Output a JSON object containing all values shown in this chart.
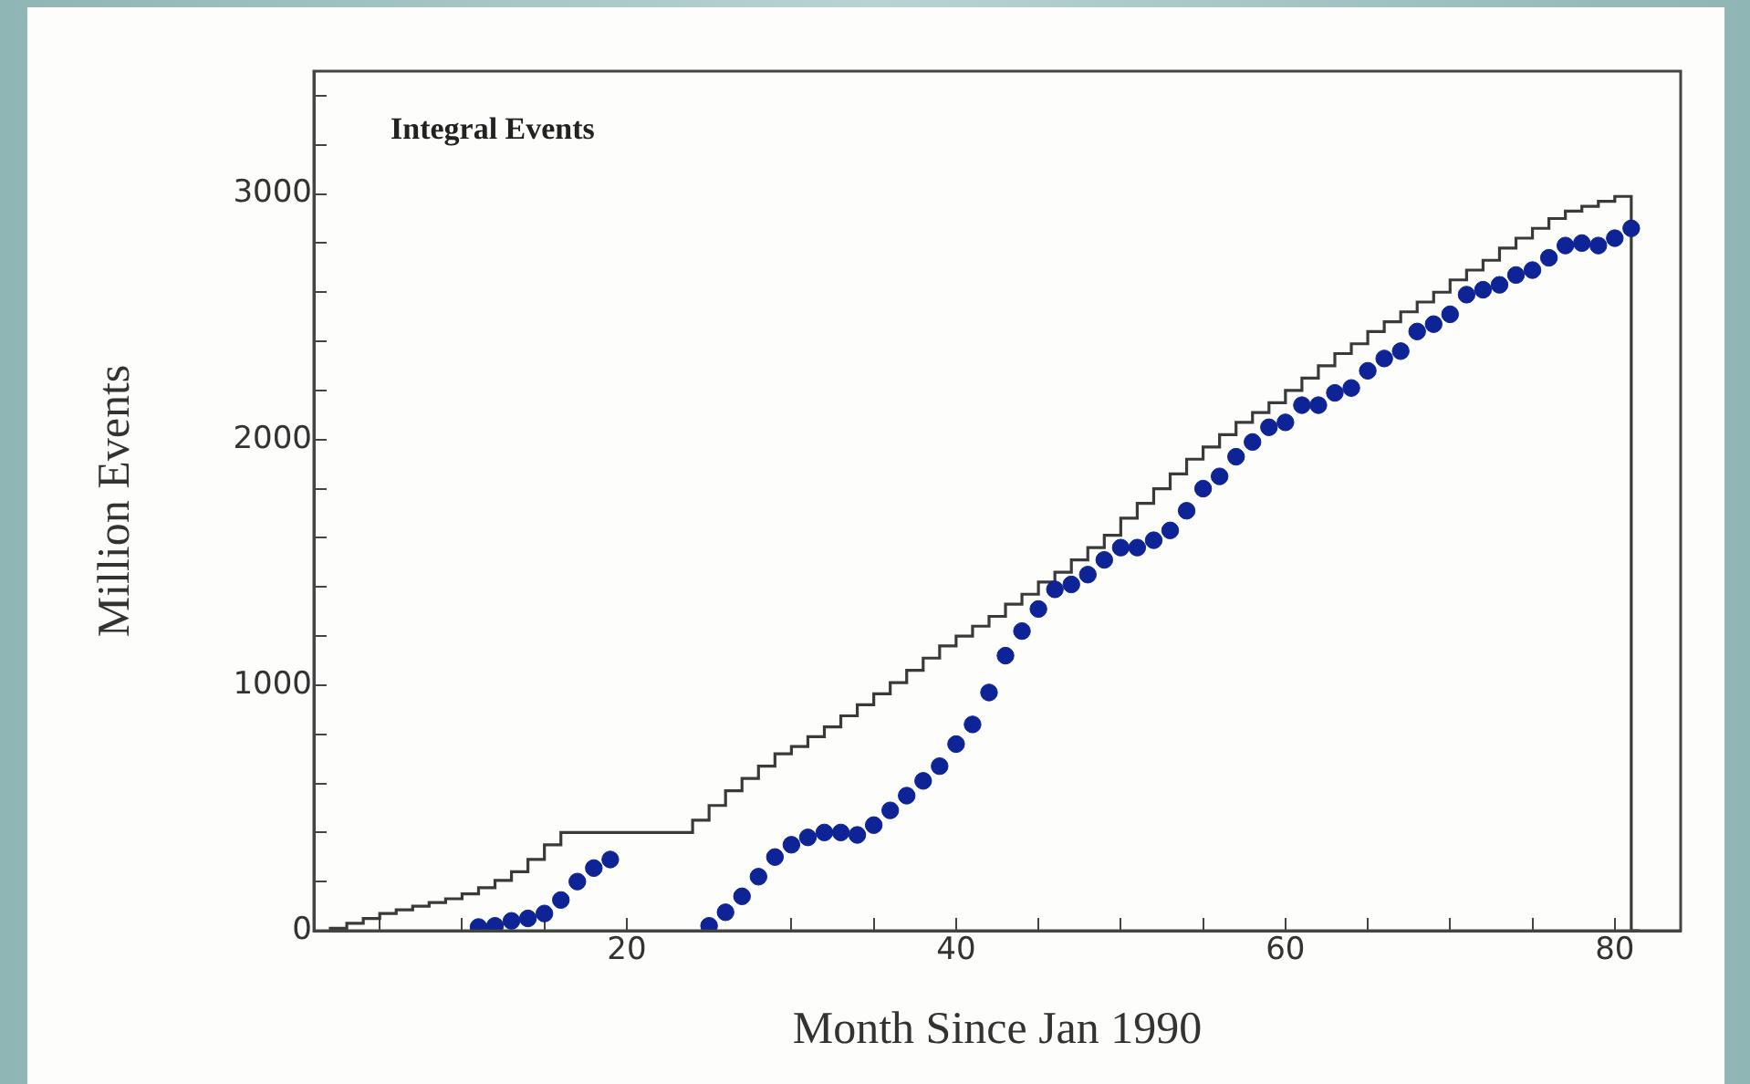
{
  "chart_data": {
    "type": "scatter",
    "xlabel": "Month Since Jan 1990",
    "ylabel": "Million Events",
    "annotations": [
      "Integral Events"
    ],
    "xlim": [
      1,
      84
    ],
    "ylim": [
      0,
      3500
    ],
    "xticks": [
      {
        "value": 5,
        "label": null
      },
      {
        "value": 10,
        "label": null
      },
      {
        "value": 15,
        "label": null
      },
      20,
      {
        "value": 25,
        "label": null
      },
      {
        "value": 30,
        "label": null
      },
      {
        "value": 35,
        "label": null
      },
      40,
      {
        "value": 45,
        "label": null
      },
      {
        "value": 50,
        "label": null
      },
      {
        "value": 55,
        "label": null
      },
      60,
      {
        "value": 65,
        "label": null
      },
      {
        "value": 70,
        "label": null
      },
      {
        "value": 75,
        "label": null
      },
      80
    ],
    "yticks": [
      0,
      {
        "value": 200,
        "label": null
      },
      {
        "value": 400,
        "label": null
      },
      {
        "value": 600,
        "label": null
      },
      {
        "value": 800,
        "label": null
      },
      1000,
      {
        "value": 1200,
        "label": null
      },
      {
        "value": 1400,
        "label": null
      },
      {
        "value": 1600,
        "label": null
      },
      {
        "value": 1800,
        "label": null
      },
      2000,
      {
        "value": 2200,
        "label": null
      },
      {
        "value": 2400,
        "label": null
      },
      {
        "value": 2600,
        "label": null
      },
      {
        "value": 2800,
        "label": null
      },
      3000,
      {
        "value": 3200,
        "label": null
      },
      {
        "value": 3400,
        "label": null
      }
    ],
    "grid": false,
    "series": [
      {
        "type": "step",
        "color": "#3a3a3a",
        "x": [
          2,
          3,
          4,
          5,
          6,
          7,
          8,
          9,
          10,
          11,
          12,
          13,
          14,
          15,
          16,
          17,
          18,
          19,
          20,
          21,
          22,
          23,
          24,
          25,
          26,
          27,
          28,
          29,
          30,
          31,
          32,
          33,
          34,
          35,
          36,
          37,
          38,
          39,
          40,
          41,
          42,
          43,
          44,
          45,
          46,
          47,
          48,
          49,
          50,
          51,
          52,
          53,
          54,
          55,
          56,
          57,
          58,
          59,
          60,
          61,
          62,
          63,
          64,
          65,
          66,
          67,
          68,
          69,
          70,
          71,
          72,
          73,
          74,
          75,
          76,
          77,
          78,
          79,
          80,
          81,
          81.5
        ],
        "values": [
          0,
          10,
          30,
          50,
          70,
          85,
          100,
          115,
          130,
          150,
          175,
          205,
          240,
          290,
          350,
          400,
          400,
          400,
          400,
          400,
          400,
          400,
          400,
          450,
          510,
          570,
          620,
          670,
          720,
          750,
          790,
          830,
          875,
          920,
          965,
          1010,
          1060,
          1110,
          1160,
          1200,
          1240,
          1280,
          1330,
          1370,
          1420,
          1460,
          1510,
          1560,
          1610,
          1680,
          1740,
          1800,
          1860,
          1920,
          1970,
          2020,
          2070,
          2110,
          2150,
          2200,
          2250,
          2300,
          2350,
          2390,
          2440,
          2480,
          2520,
          2560,
          2600,
          2650,
          2690,
          2730,
          2780,
          2820,
          2860,
          2900,
          2930,
          2950,
          2970,
          2990,
          0
        ]
      },
      {
        "marker": "circle",
        "color": "#0d2396",
        "x": [
          11,
          12,
          13,
          14,
          15,
          16,
          17,
          18,
          19,
          25,
          26,
          27,
          28,
          29,
          30,
          31,
          32,
          33,
          34,
          35,
          36,
          37,
          38,
          39,
          40,
          41,
          42,
          43,
          44,
          45,
          46,
          47,
          48,
          49,
          50,
          51,
          52,
          53,
          54,
          55,
          56,
          57,
          58,
          59,
          60,
          61,
          62,
          63,
          64,
          65,
          66,
          67,
          68,
          69,
          70,
          71,
          72,
          73,
          74,
          75,
          76,
          77,
          78,
          79,
          80,
          81
        ],
        "values": [
          15,
          20,
          40,
          50,
          70,
          125,
          200,
          255,
          290,
          20,
          75,
          140,
          220,
          300,
          350,
          380,
          400,
          400,
          390,
          430,
          490,
          550,
          610,
          670,
          760,
          840,
          970,
          1120,
          1220,
          1310,
          1390,
          1410,
          1450,
          1510,
          1560,
          1560,
          1590,
          1630,
          1710,
          1800,
          1850,
          1930,
          1990,
          2050,
          2070,
          2140,
          2140,
          2190,
          2210,
          2280,
          2330,
          2360,
          2440,
          2470,
          2510,
          2590,
          2610,
          2630,
          2670,
          2690,
          2740,
          2790,
          2800,
          2790,
          2820,
          2860
        ]
      }
    ]
  }
}
